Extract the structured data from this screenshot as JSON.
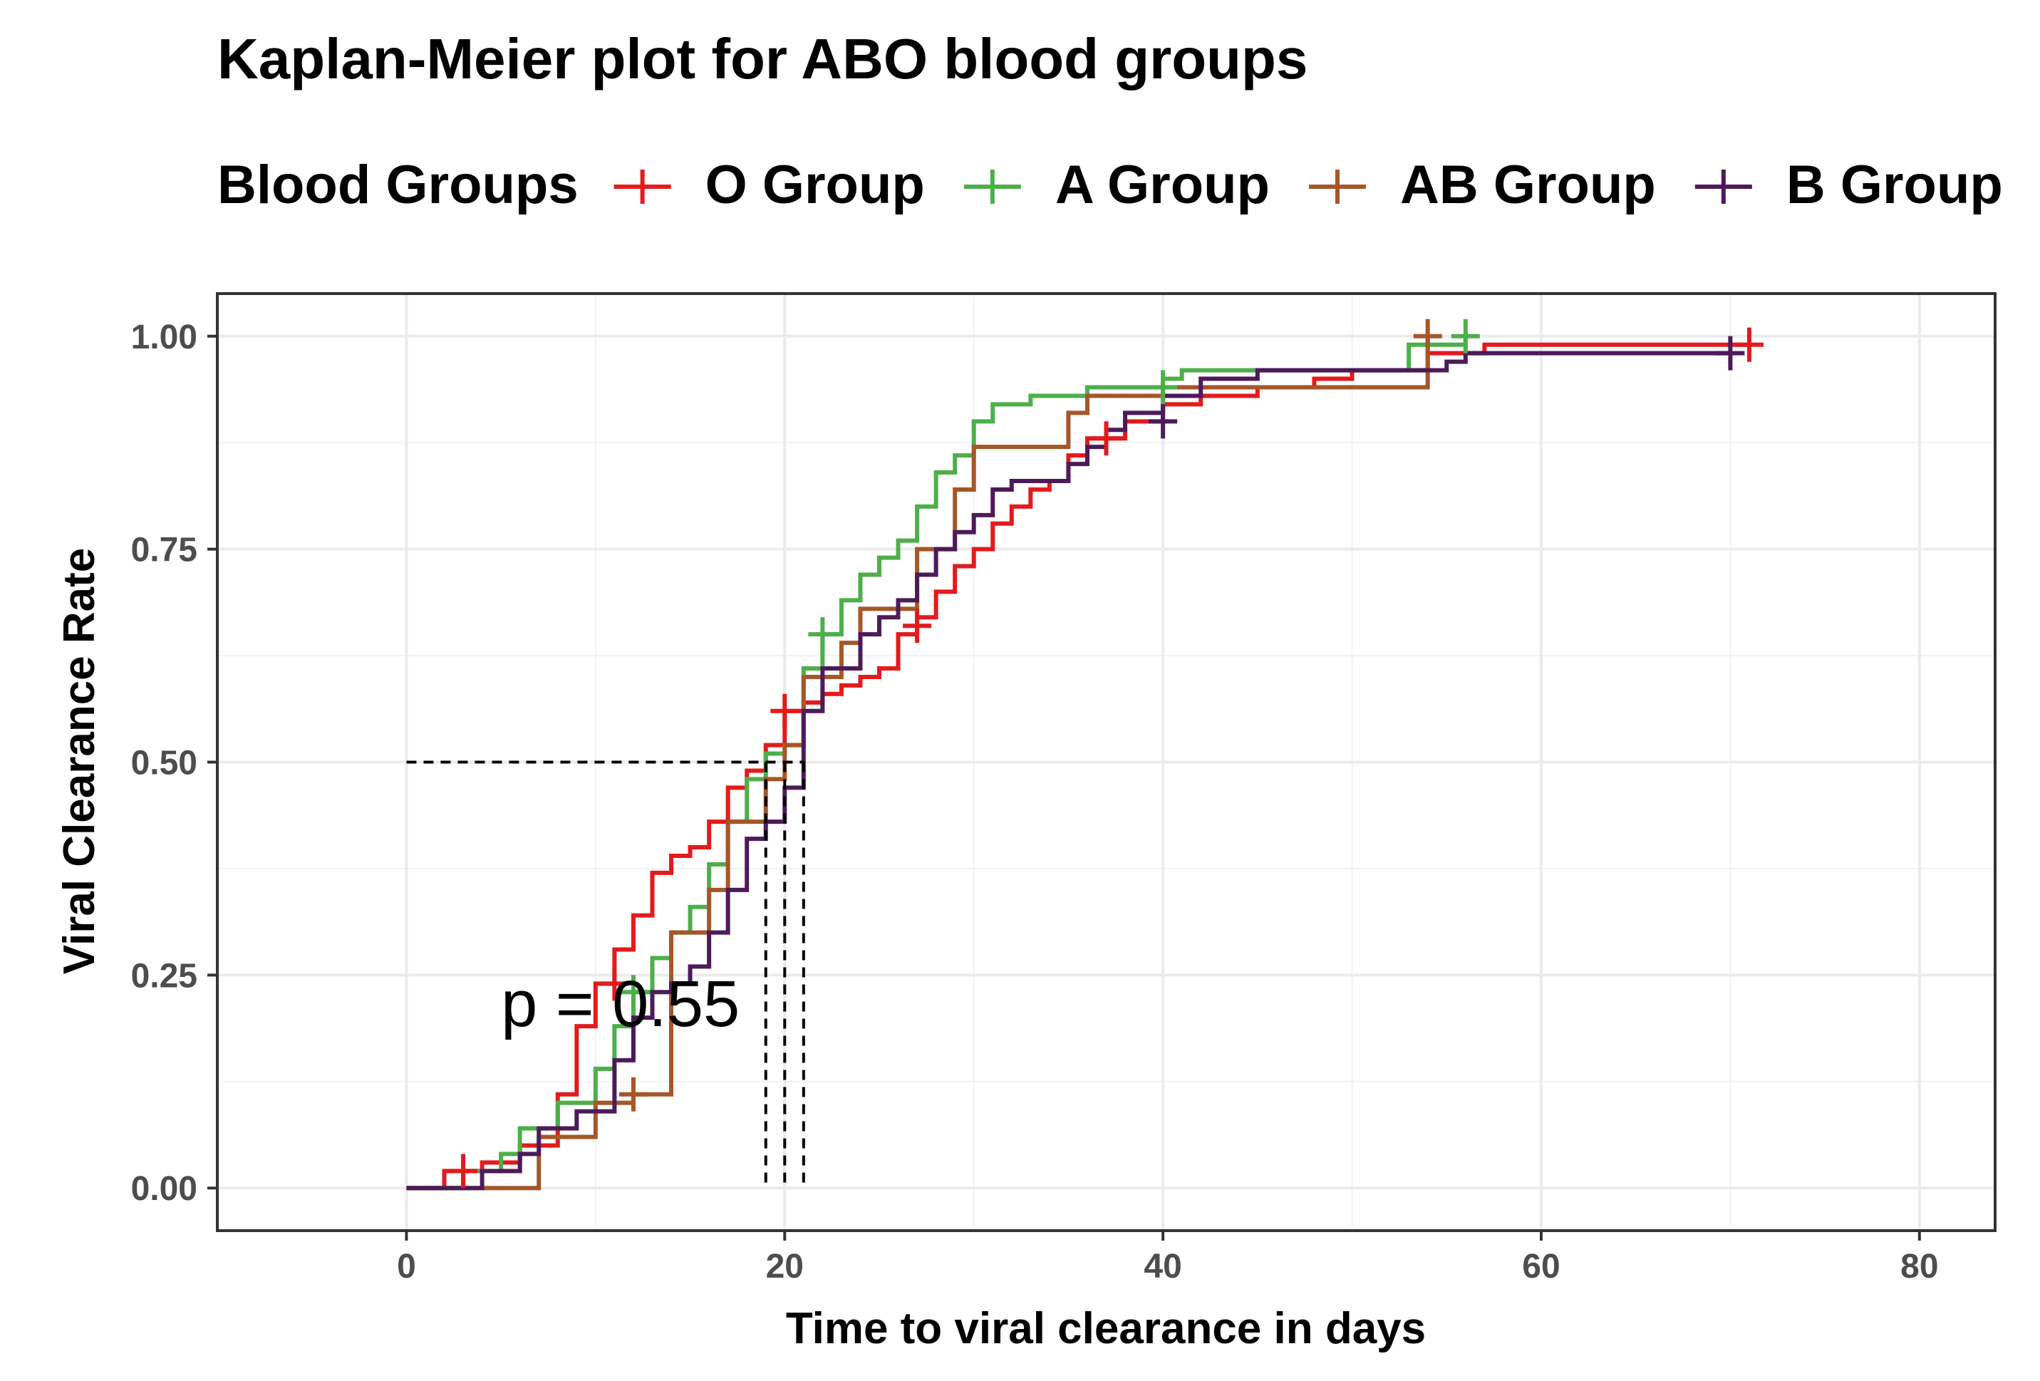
{
  "chart_data": {
    "type": "line",
    "subtype": "kaplan-meier-cumulative",
    "title": "Kaplan-Meier plot for ABO blood groups",
    "xlabel": "Time to viral clearance in days",
    "ylabel": "Viral Clearance Rate",
    "xlim": [
      -10,
      84
    ],
    "ylim": [
      -0.05,
      1.05
    ],
    "xticks": [
      0,
      20,
      40,
      60,
      80
    ],
    "yticks": [
      0.0,
      0.25,
      0.5,
      0.75,
      1.0
    ],
    "xtick_labels": [
      "0",
      "20",
      "40",
      "60",
      "80"
    ],
    "ytick_labels": [
      "0.00",
      "0.25",
      "0.50",
      "0.75",
      "1.00"
    ],
    "grid": true,
    "legend": {
      "title": "Blood Groups",
      "position": "top"
    },
    "annotation": "p = 0.55",
    "annotation_at": [
      5,
      0.19
    ],
    "median_reference": {
      "y": 0.5,
      "x_values": [
        19,
        20,
        21
      ]
    },
    "series": [
      {
        "name": "O Group",
        "color": "#e41a1c",
        "x": [
          0,
          2,
          4,
          6,
          8,
          9,
          10,
          11,
          12,
          13,
          14,
          15,
          16,
          17,
          18,
          19,
          20,
          21,
          22,
          23,
          24,
          25,
          26,
          27,
          28,
          29,
          30,
          31,
          32,
          33,
          34,
          35,
          36,
          38,
          40,
          42,
          45,
          48,
          50,
          54,
          57,
          71
        ],
        "y": [
          0,
          0.02,
          0.03,
          0.05,
          0.11,
          0.19,
          0.24,
          0.28,
          0.32,
          0.37,
          0.39,
          0.4,
          0.43,
          0.47,
          0.49,
          0.52,
          0.56,
          0.57,
          0.58,
          0.59,
          0.6,
          0.61,
          0.65,
          0.67,
          0.7,
          0.73,
          0.75,
          0.78,
          0.8,
          0.82,
          0.83,
          0.86,
          0.88,
          0.9,
          0.92,
          0.93,
          0.94,
          0.95,
          0.96,
          0.98,
          0.99,
          0.99
        ],
        "censor_x": [
          3,
          11,
          20,
          27,
          37,
          71
        ],
        "censor_y": [
          0.02,
          0.24,
          0.56,
          0.66,
          0.88,
          0.99
        ]
      },
      {
        "name": "A Group",
        "color": "#4daf4a",
        "x": [
          0,
          3,
          5,
          6,
          8,
          10,
          11,
          12,
          13,
          14,
          15,
          16,
          17,
          18,
          19,
          20,
          21,
          22,
          23,
          24,
          25,
          26,
          27,
          28,
          29,
          30,
          31,
          33,
          36,
          40,
          41,
          53,
          56
        ],
        "y": [
          0,
          0.02,
          0.04,
          0.07,
          0.1,
          0.14,
          0.19,
          0.23,
          0.27,
          0.3,
          0.33,
          0.38,
          0.43,
          0.48,
          0.51,
          0.52,
          0.61,
          0.65,
          0.69,
          0.72,
          0.74,
          0.76,
          0.8,
          0.84,
          0.86,
          0.9,
          0.92,
          0.93,
          0.94,
          0.95,
          0.96,
          0.99,
          1.0
        ],
        "censor_x": [
          12,
          22,
          40,
          56
        ],
        "censor_y": [
          0.23,
          0.65,
          0.94,
          1.0
        ]
      },
      {
        "name": "AB Group",
        "color": "#a65628",
        "x": [
          0,
          7,
          10,
          12,
          14,
          16,
          17,
          19,
          20,
          21,
          23,
          24,
          27,
          29,
          30,
          35,
          36,
          40,
          45,
          54
        ],
        "y": [
          0,
          0.06,
          0.1,
          0.11,
          0.3,
          0.35,
          0.43,
          0.48,
          0.52,
          0.6,
          0.64,
          0.68,
          0.75,
          0.82,
          0.87,
          0.91,
          0.93,
          0.94,
          0.94,
          1.0
        ],
        "censor_x": [
          12,
          54
        ],
        "censor_y": [
          0.11,
          1.0
        ]
      },
      {
        "name": "B Group",
        "color": "#4d1a5a",
        "x": [
          0,
          4,
          6,
          7,
          9,
          11,
          12,
          13,
          14,
          15,
          16,
          17,
          18,
          19,
          20,
          21,
          22,
          24,
          25,
          26,
          27,
          28,
          29,
          30,
          31,
          32,
          34,
          35,
          36,
          37,
          38,
          40,
          42,
          45,
          55,
          56,
          70
        ],
        "y": [
          0,
          0.02,
          0.04,
          0.07,
          0.09,
          0.15,
          0.2,
          0.23,
          0.24,
          0.26,
          0.3,
          0.35,
          0.41,
          0.43,
          0.47,
          0.56,
          0.61,
          0.65,
          0.67,
          0.69,
          0.72,
          0.75,
          0.77,
          0.79,
          0.82,
          0.83,
          0.83,
          0.85,
          0.87,
          0.89,
          0.91,
          0.93,
          0.95,
          0.96,
          0.97,
          0.98,
          0.98
        ],
        "censor_x": [
          40,
          70
        ],
        "censor_y": [
          0.9,
          0.98
        ]
      }
    ]
  }
}
